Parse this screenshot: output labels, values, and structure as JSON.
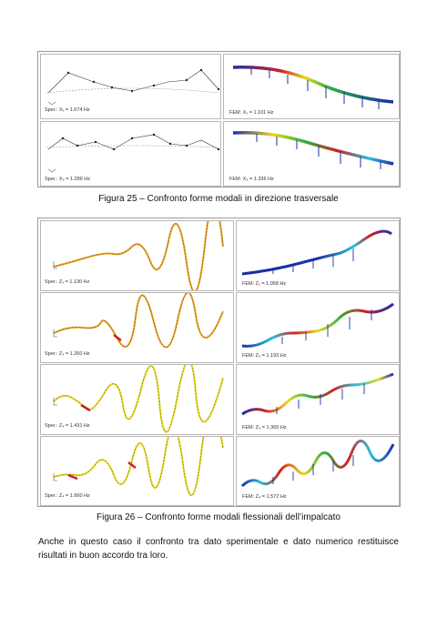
{
  "figure25": {
    "caption": "Figura 25 – Confronto forme modali in direzione trasversale",
    "rows": [
      {
        "exp_label": "Sper.: X₁ = 1.074 Hz",
        "fem_label": "FEM: X₁ = 1.101 Hz"
      },
      {
        "exp_label": "Sper.: X₂ = 1.289 Hz",
        "fem_label": "FEM: X₂ = 1.336 Hz"
      }
    ]
  },
  "figure26": {
    "caption": "Figura 26 – Confronto forme modali flessionali dell’impalcato",
    "rows": [
      {
        "exp_label": "Sper.: Z₁ = 1.130 Hz",
        "fem_label": "FEM: Z₁ = 1.058 Hz"
      },
      {
        "exp_label": "Sper.: Z₂ = 1.260 Hz",
        "fem_label": "FEM: Z₂ = 1.193 Hz"
      },
      {
        "exp_label": "Sper.: Z₃ = 1.431 Hz",
        "fem_label": "FEM: Z₃ = 1.365 Hz"
      },
      {
        "exp_label": "Sper.: Z₄ = 1.660 Hz",
        "fem_label": "FEM: Z₄ = 1.572 Hz"
      }
    ]
  },
  "paragraph": "Anche in questo caso il confronto tra dato sperimentale e dato numerico restituisce risultati in buon accordo tra loro.",
  "colors": {
    "fem_blue": "#1a2fa8",
    "fem_red": "#d42020",
    "fem_yellow": "#e8d820",
    "fem_green": "#2ab040",
    "fem_cyan": "#28c0d8"
  }
}
